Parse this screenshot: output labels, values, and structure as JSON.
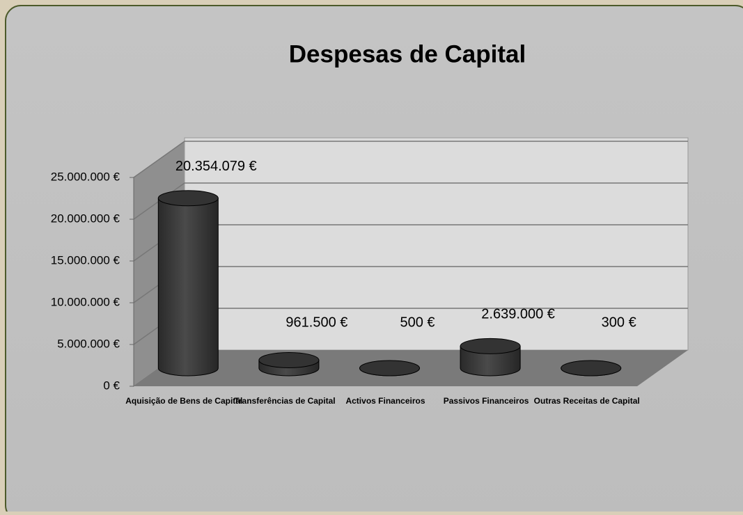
{
  "chart_data": {
    "type": "bar",
    "title": "Despesas de Capital",
    "categories": [
      "Aquisição de Bens de Capital",
      "Transferências de Capital",
      "Activos Financeiros",
      "Passivos Financeiros",
      "Outras Receitas de Capital"
    ],
    "values": [
      20354079,
      961500,
      500,
      2639000,
      300
    ],
    "value_labels": [
      "20.354.079 €",
      "961.500 €",
      "500 €",
      "2.639.000 €",
      "300 €"
    ],
    "color": "#3a3a3a",
    "ylim": [
      0,
      25000000
    ],
    "yticks": [
      {
        "value": 0,
        "label": "0 €"
      },
      {
        "value": 5000000,
        "label": "5.000.000 €"
      },
      {
        "value": 10000000,
        "label": "10.000.000 €"
      },
      {
        "value": 15000000,
        "label": "15.000.000 €"
      },
      {
        "value": 20000000,
        "label": "20.000.000 €"
      },
      {
        "value": 25000000,
        "label": "25.000.000 €"
      }
    ],
    "grid": true
  }
}
